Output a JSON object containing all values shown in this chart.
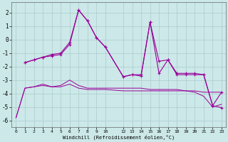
{
  "xlabel": "Windchill (Refroidissement éolien,°C)",
  "bg_color": "#cce8e8",
  "grid_color": "#aacccc",
  "line_color": "#990099",
  "xlim": [
    -0.5,
    23.5
  ],
  "ylim": [
    -6.5,
    2.8
  ],
  "yticks": [
    -6,
    -5,
    -4,
    -3,
    -2,
    -1,
    0,
    1,
    2
  ],
  "xticks": [
    0,
    1,
    2,
    3,
    4,
    5,
    6,
    7,
    8,
    9,
    10,
    12,
    13,
    14,
    15,
    16,
    17,
    18,
    19,
    20,
    21,
    22,
    23
  ],
  "line1_x": [
    0,
    1,
    2,
    3,
    4,
    5,
    6,
    7,
    8,
    9,
    10,
    12,
    13,
    14,
    15,
    16,
    17,
    18,
    19,
    20,
    21,
    22,
    23
  ],
  "line1_y": [
    -5.8,
    -3.6,
    -3.5,
    -3.4,
    -3.5,
    -3.5,
    -3.3,
    -3.6,
    -3.7,
    -3.7,
    -3.7,
    -3.8,
    -3.8,
    -3.8,
    -3.8,
    -3.8,
    -3.8,
    -3.8,
    -3.8,
    -3.8,
    -3.9,
    -3.9,
    -3.9
  ],
  "line2_x": [
    0,
    1,
    2,
    3,
    4,
    5,
    6,
    7,
    8,
    9,
    10,
    12,
    13,
    14,
    15,
    16,
    17,
    18,
    19,
    20,
    21,
    22,
    23
  ],
  "line2_y": [
    -5.8,
    -3.6,
    -3.5,
    -3.3,
    -3.5,
    -3.4,
    -3.0,
    -3.4,
    -3.6,
    -3.6,
    -3.6,
    -3.6,
    -3.6,
    -3.6,
    -3.7,
    -3.7,
    -3.7,
    -3.7,
    -3.8,
    -3.9,
    -4.2,
    -5.0,
    -4.8
  ],
  "line3_x": [
    1,
    2,
    3,
    4,
    5,
    6,
    7,
    8,
    9,
    10,
    12,
    13,
    14,
    15,
    16,
    17,
    18,
    19,
    20,
    21,
    22,
    23
  ],
  "line3_y": [
    -1.7,
    -1.5,
    -1.3,
    -1.2,
    -1.1,
    -0.35,
    2.2,
    1.4,
    0.15,
    -0.55,
    -2.75,
    -2.6,
    -2.7,
    1.3,
    -2.5,
    -1.5,
    -2.6,
    -2.6,
    -2.6,
    -2.6,
    -4.9,
    -5.05
  ],
  "line4_x": [
    1,
    2,
    3,
    4,
    5,
    6,
    7,
    8,
    9,
    10,
    12,
    13,
    14,
    15,
    16,
    17,
    18,
    19,
    20,
    21,
    22,
    23
  ],
  "line4_y": [
    -1.7,
    -1.5,
    -1.3,
    -1.1,
    -1.0,
    -0.2,
    2.2,
    1.4,
    0.15,
    -0.55,
    -2.75,
    -2.6,
    -2.6,
    1.3,
    -1.6,
    -1.5,
    -2.5,
    -2.5,
    -2.5,
    -2.6,
    -4.9,
    -3.9
  ]
}
